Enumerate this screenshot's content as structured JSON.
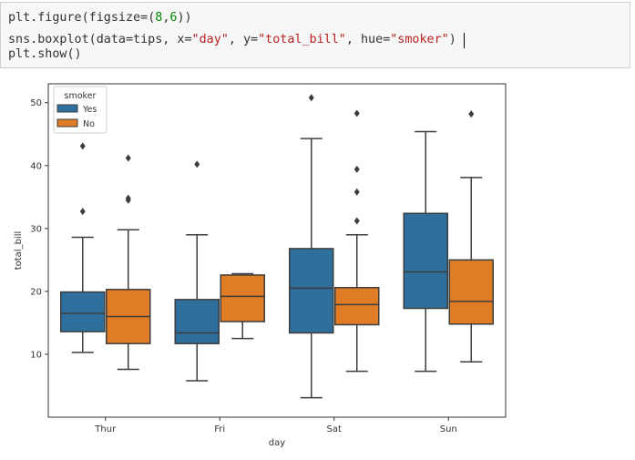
{
  "code_cell": {
    "lines": [
      [
        {
          "t": "plt.figure(figsize=",
          "c": ""
        },
        {
          "t": "(",
          "c": ""
        },
        {
          "t": "8",
          "c": "num"
        },
        {
          "t": ",",
          "c": ""
        },
        {
          "t": "6",
          "c": "num"
        },
        {
          "t": "))",
          "c": ""
        }
      ],
      [
        {
          "t": "sns.boxplot(data=tips, x=",
          "c": ""
        },
        {
          "t": "\"day\"",
          "c": "str"
        },
        {
          "t": ", y=",
          "c": ""
        },
        {
          "t": "\"total_bill\"",
          "c": "str"
        },
        {
          "t": ", hue=",
          "c": ""
        },
        {
          "t": "\"smoker\"",
          "c": "str"
        },
        {
          "t": ")",
          "c": ""
        }
      ],
      [
        {
          "t": "plt.show()",
          "c": ""
        }
      ]
    ]
  },
  "chart_data": {
    "type": "box",
    "xlabel": "day",
    "ylabel": "total_bill",
    "categories": [
      "Thur",
      "Fri",
      "Sat",
      "Sun"
    ],
    "ylim": [
      0,
      53
    ],
    "yticks": [
      10,
      20,
      30,
      40,
      50
    ],
    "legend": {
      "title": "smoker",
      "placement": "top-left"
    },
    "series": [
      {
        "name": "Yes",
        "color": "#2f6f9e",
        "boxes": [
          {
            "whislo": 10.3,
            "q1": 13.6,
            "med": 16.5,
            "q3": 19.9,
            "whishi": 28.6,
            "fliers": [
              32.7,
              43.1
            ]
          },
          {
            "whislo": 5.8,
            "q1": 11.7,
            "med": 13.4,
            "q3": 18.7,
            "whishi": 29.0,
            "fliers": [
              40.2
            ]
          },
          {
            "whislo": 3.1,
            "q1": 13.4,
            "med": 20.5,
            "q3": 26.8,
            "whishi": 44.3,
            "fliers": [
              50.8
            ]
          },
          {
            "whislo": 7.3,
            "q1": 17.3,
            "med": 23.1,
            "q3": 32.4,
            "whishi": 45.4,
            "fliers": []
          }
        ]
      },
      {
        "name": "No",
        "color": "#e07b26",
        "boxes": [
          {
            "whislo": 7.6,
            "q1": 11.7,
            "med": 16.0,
            "q3": 20.3,
            "whishi": 29.8,
            "fliers": [
              34.5,
              34.8,
              41.2
            ]
          },
          {
            "whislo": 12.5,
            "q1": 15.2,
            "med": 19.2,
            "q3": 22.6,
            "whishi": 22.8,
            "fliers": []
          },
          {
            "whislo": 7.3,
            "q1": 14.7,
            "med": 17.9,
            "q3": 20.6,
            "whishi": 29.0,
            "fliers": [
              31.2,
              35.8,
              39.4,
              48.3
            ]
          },
          {
            "whislo": 8.8,
            "q1": 14.8,
            "med": 18.4,
            "q3": 25.0,
            "whishi": 38.1,
            "fliers": [
              48.2
            ]
          }
        ]
      }
    ]
  }
}
